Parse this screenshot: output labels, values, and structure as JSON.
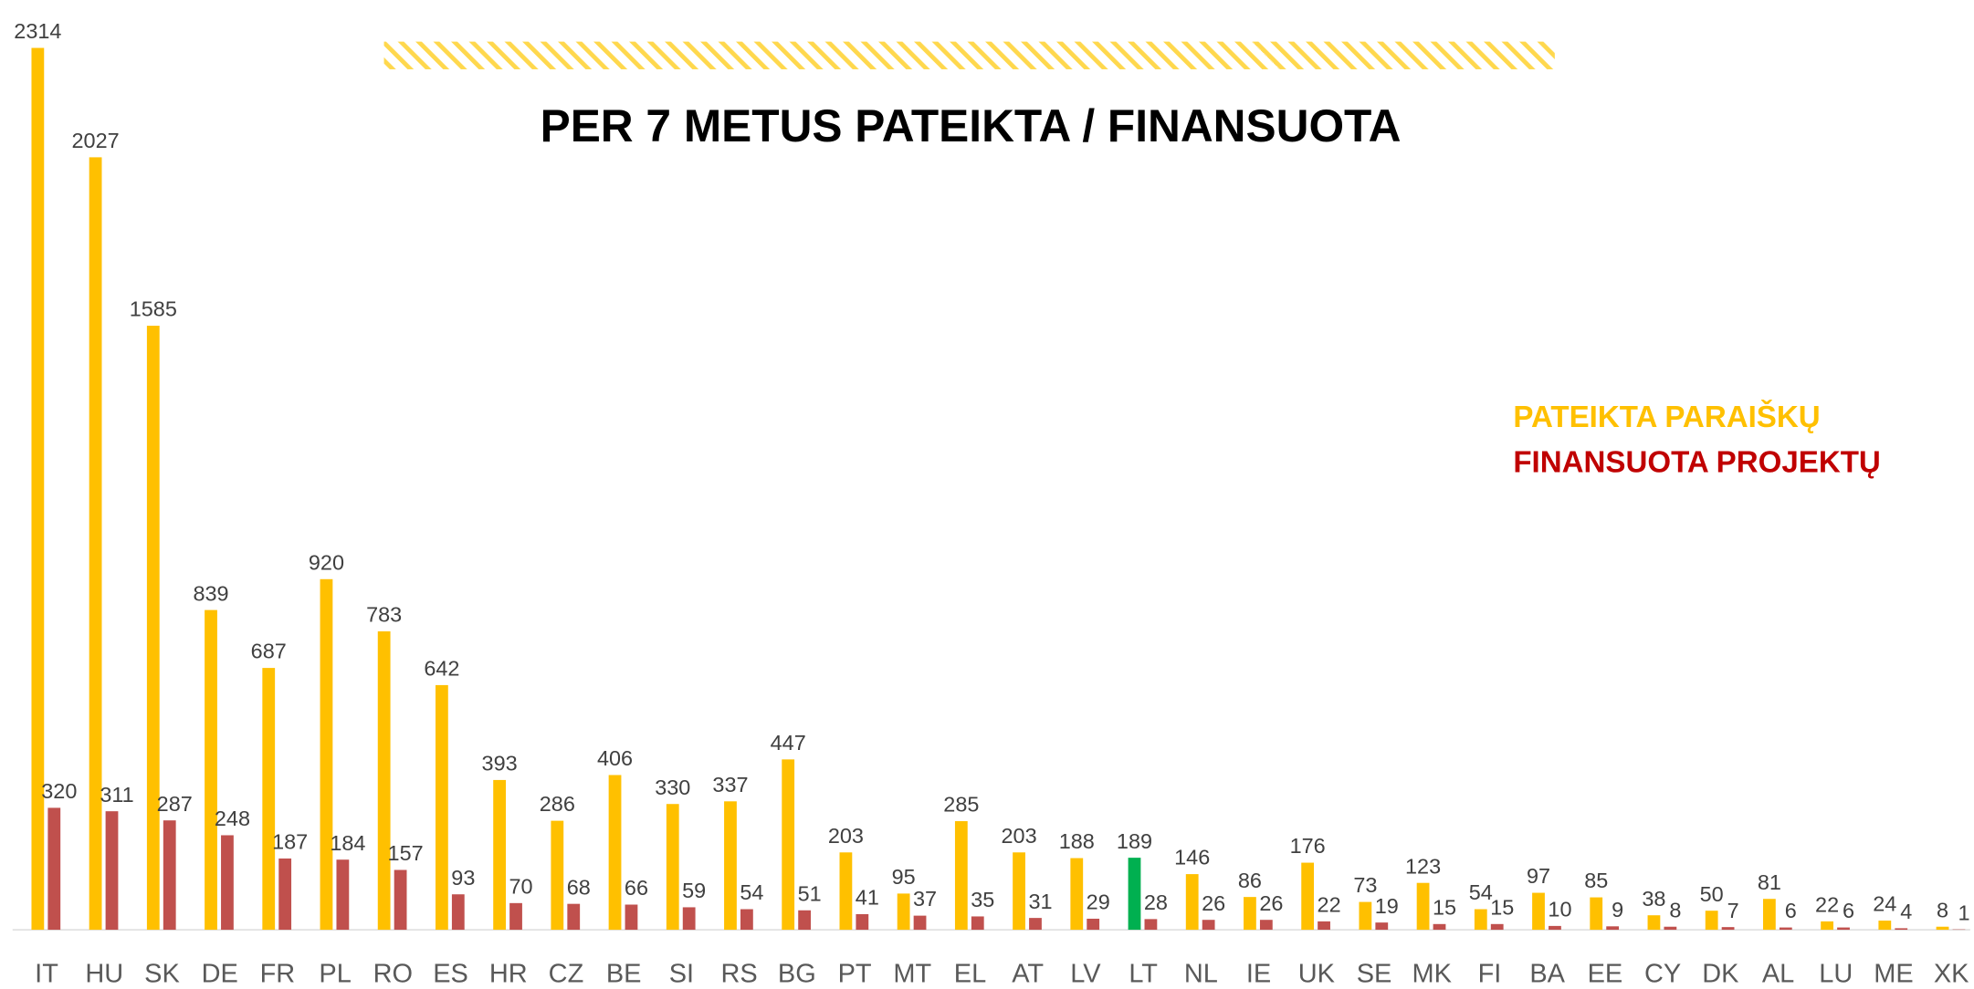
{
  "chart_data": {
    "type": "bar",
    "title": "PER 7 METUS PATEIKTA / FINANSUOTA",
    "categories": [
      "IT",
      "HU",
      "SK",
      "DE",
      "FR",
      "PL",
      "RO",
      "ES",
      "HR",
      "CZ",
      "BE",
      "SI",
      "RS",
      "BG",
      "PT",
      "MT",
      "EL",
      "AT",
      "LV",
      "LT",
      "NL",
      "IE",
      "UK",
      "SE",
      "MK",
      "FI",
      "BA",
      "EE",
      "CY",
      "DK",
      "AL",
      "LU",
      "ME",
      "XK"
    ],
    "series": [
      {
        "name": "PATEIKTA PARAIŠKŲ",
        "color": "#ffc000",
        "values": [
          2314,
          2027,
          1585,
          839,
          687,
          920,
          783,
          642,
          393,
          286,
          406,
          330,
          337,
          447,
          203,
          95,
          285,
          203,
          188,
          189,
          146,
          86,
          176,
          73,
          123,
          54,
          97,
          85,
          38,
          50,
          81,
          22,
          24,
          8
        ]
      },
      {
        "name": "FINANSUOTA PROJEKTŲ",
        "color": "#c00000",
        "bar_color": "#c0504d",
        "values": [
          320,
          311,
          287,
          248,
          187,
          184,
          157,
          93,
          70,
          68,
          66,
          59,
          54,
          51,
          41,
          37,
          35,
          31,
          29,
          28,
          26,
          26,
          22,
          19,
          15,
          15,
          10,
          9,
          8,
          7,
          6,
          6,
          4,
          1
        ]
      }
    ],
    "highlight": {
      "category": "LT",
      "series": 0,
      "color": "#00b050"
    },
    "ylim": [
      0,
      2314
    ],
    "legend": "right"
  }
}
